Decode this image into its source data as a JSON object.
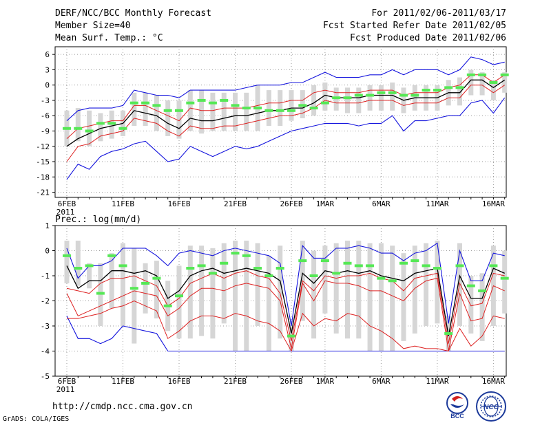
{
  "header": {
    "title": "DERF/NCC/BCC Monthly Forecast",
    "member_size": "Member Size=40",
    "variable": "Mean Surf. Temp.: °C",
    "period": "For 2011/02/06-2011/03/17",
    "started": "Fcst Started Refer Date 2011/02/05",
    "produced": "Fcst Produced Date 2011/02/06"
  },
  "footer": {
    "url": "http://cmdp.ncc.cma.gov.cn",
    "credit": "GrADS: COLA/IGES",
    "logo_bcc_text": "BCC",
    "logo_ncc_text": "NCC"
  },
  "colors": {
    "bar": "#d6d6d6",
    "median": "#55e855",
    "mean": "#000000",
    "inner": "#dd2020",
    "outer": "#1414dd",
    "grid": "#9a9a9a"
  },
  "chart_data": [
    {
      "type": "line",
      "title": "Mean Surf. Temp.: °C",
      "x_days": [
        1,
        2,
        3,
        4,
        5,
        6,
        7,
        8,
        9,
        10,
        11,
        12,
        13,
        14,
        15,
        16,
        17,
        18,
        19,
        20,
        21,
        22,
        23,
        24,
        25,
        26,
        27,
        28,
        29,
        30,
        31,
        32,
        33,
        34,
        35,
        36,
        37,
        38,
        39,
        40
      ],
      "x_ticks": [
        "6FEB",
        "11FEB",
        "16FEB",
        "21FEB",
        "26FEB",
        "1MAR",
        "6MAR",
        "11MAR",
        "16MAR"
      ],
      "x_tick_days": [
        1,
        6,
        11,
        16,
        21,
        24,
        29,
        34,
        39
      ],
      "x_year": "2011",
      "ylim": [
        -22,
        7.5
      ],
      "y_ticks": [
        -21,
        -18,
        -15,
        -12,
        -9,
        -6,
        -3,
        0,
        3,
        6
      ],
      "series": [
        {
          "name": "mean",
          "values": [
            -12,
            -10.5,
            -9.5,
            -8.5,
            -8,
            -7.5,
            -5,
            -5.5,
            -6,
            -7.5,
            -8.5,
            -6.5,
            -7,
            -7,
            -6.5,
            -6,
            -6,
            -5.5,
            -5,
            -5,
            -4.5,
            -4.5,
            -3.5,
            -2,
            -2.5,
            -2.5,
            -2.5,
            -2,
            -2,
            -2,
            -3,
            -2.5,
            -2.5,
            -2.5,
            -1.5,
            -1.5,
            1,
            1,
            -0.5,
            1
          ]
        },
        {
          "name": "upper_inner",
          "values": [
            -10.5,
            -8.5,
            -8,
            -7.5,
            -7,
            -7,
            -4,
            -4,
            -5,
            -6,
            -7,
            -4.5,
            -5,
            -5,
            -4.5,
            -4.5,
            -4.5,
            -4,
            -3.5,
            -3.5,
            -3,
            -3,
            -1.5,
            -1,
            -1.5,
            -1.5,
            -1.5,
            -1,
            -1,
            -1,
            -2,
            -1.5,
            -1.5,
            -1.5,
            -0.5,
            0,
            2,
            2,
            0.5,
            2
          ]
        },
        {
          "name": "lower_inner",
          "values": [
            -15,
            -12,
            -11.5,
            -10,
            -9.5,
            -9,
            -6.5,
            -7,
            -7.5,
            -9,
            -10,
            -8,
            -8.5,
            -8.5,
            -8,
            -8,
            -7.5,
            -7,
            -6.5,
            -6,
            -6,
            -5.5,
            -4.5,
            -3,
            -3.5,
            -3.5,
            -3.5,
            -3,
            -3,
            -3,
            -4,
            -3.5,
            -3.5,
            -3.5,
            -2.5,
            -2.5,
            0,
            0,
            -1.5,
            0
          ]
        },
        {
          "name": "max",
          "values": [
            -7,
            -5,
            -4.5,
            -4.5,
            -4.5,
            -4,
            -1,
            -1.5,
            -2,
            -2,
            -2.5,
            -1,
            -1,
            -1,
            -1,
            -1,
            -0.5,
            0,
            0,
            0,
            0.5,
            0.5,
            1.5,
            2.5,
            1.5,
            1.5,
            1.5,
            2,
            2,
            3,
            2,
            3,
            3,
            3,
            2,
            3,
            5.5,
            5,
            4,
            4.5
          ]
        },
        {
          "name": "min",
          "values": [
            -18.5,
            -15.5,
            -16.5,
            -14,
            -13,
            -12.5,
            -11.5,
            -11,
            -13,
            -15,
            -14.5,
            -12,
            -13,
            -14,
            -13,
            -12,
            -12.5,
            -12,
            -11,
            -10,
            -9,
            -8.5,
            -8,
            -7.5,
            -7.5,
            -7.5,
            -8,
            -7.5,
            -7.5,
            -6,
            -9,
            -7,
            -7,
            -6.5,
            -6,
            -6,
            -3.5,
            -3,
            -5.5,
            -2.5
          ]
        },
        {
          "name": "median",
          "values": [
            -8.5,
            -8.5,
            -9,
            -7.5,
            -7.5,
            -8.5,
            -3.5,
            -3.5,
            -4,
            -5,
            -5,
            -3.5,
            -3,
            -3.5,
            -3,
            -4,
            -4.5,
            -4.5,
            -5,
            -5,
            -5,
            -4,
            -4.5,
            -3.5,
            -2.5,
            -2.5,
            -2,
            -2,
            -1.5,
            -1.5,
            -2,
            -2,
            -1,
            -1,
            -0.5,
            -0.5,
            2,
            2,
            0.5,
            2
          ]
        },
        {
          "name": "bar_top",
          "values": [
            -5,
            -4.5,
            -5,
            -5.5,
            -5,
            -5,
            -1.5,
            -1.5,
            -2,
            -3,
            -3,
            -1,
            -1,
            -1.5,
            -1.5,
            -1.5,
            -1.5,
            0,
            -1,
            -1,
            -1,
            -1,
            0,
            0.5,
            -0.5,
            -0.5,
            -0.5,
            0,
            0,
            0.5,
            -0.5,
            0,
            0,
            0,
            1,
            1.5,
            3,
            2.5,
            1,
            2.5
          ]
        },
        {
          "name": "bar_bottom",
          "values": [
            -12,
            -11,
            -12,
            -11,
            -10.5,
            -10,
            -8,
            -8,
            -9,
            -10,
            -10.5,
            -9,
            -9.5,
            -9,
            -9,
            -9,
            -9,
            -9,
            -8,
            -8,
            -7,
            -6.5,
            -6,
            -5,
            -5,
            -5.5,
            -5.5,
            -5,
            -5,
            -5,
            -5.5,
            -5,
            -5,
            -5,
            -4,
            -4,
            -2,
            -2,
            -3,
            -1.5
          ]
        }
      ]
    },
    {
      "type": "line",
      "title": "Prec.: log(mm/d)",
      "x_days": [
        1,
        2,
        3,
        4,
        5,
        6,
        7,
        8,
        9,
        10,
        11,
        12,
        13,
        14,
        15,
        16,
        17,
        18,
        19,
        20,
        21,
        22,
        23,
        24,
        25,
        26,
        27,
        28,
        29,
        30,
        31,
        32,
        33,
        34,
        35,
        36,
        37,
        38,
        39,
        40
      ],
      "x_ticks": [
        "6FEB",
        "11FEB",
        "16FEB",
        "21FEB",
        "26FEB",
        "1MAR",
        "6MAR",
        "11MAR",
        "16MAR"
      ],
      "x_tick_days": [
        1,
        6,
        11,
        16,
        21,
        24,
        29,
        34,
        39
      ],
      "x_year": "2011",
      "ylim": [
        -5,
        1
      ],
      "y_ticks": [
        -5,
        -4,
        -3,
        -2,
        -1,
        0,
        1
      ],
      "series": [
        {
          "name": "mean",
          "values": [
            -0.6,
            -1.5,
            -1.2,
            -1.2,
            -0.8,
            -0.8,
            -0.9,
            -0.8,
            -1.0,
            -1.9,
            -1.6,
            -1.0,
            -0.8,
            -0.7,
            -0.9,
            -0.8,
            -0.7,
            -0.8,
            -0.9,
            -1.2,
            -3.3,
            -0.9,
            -1.3,
            -0.8,
            -0.9,
            -0.8,
            -0.9,
            -0.8,
            -1.0,
            -1.1,
            -1.2,
            -0.9,
            -0.8,
            -0.7,
            -3.4,
            -1.0,
            -1.9,
            -1.9,
            -0.7,
            -0.9
          ]
        },
        {
          "name": "upper_inner",
          "values": [
            -1.5,
            -1.6,
            -1.7,
            -1.3,
            -1.1,
            -1.1,
            -1.0,
            -1.2,
            -1.4,
            -2.2,
            -1.9,
            -1.3,
            -1.1,
            -0.9,
            -1.1,
            -0.9,
            -0.8,
            -1.0,
            -1.1,
            -1.7,
            -3.6,
            -1.2,
            -1.6,
            -1.0,
            -1.1,
            -1.0,
            -1.0,
            -0.9,
            -1.1,
            -1.2,
            -1.6,
            -1.1,
            -1.0,
            -0.9,
            -3.7,
            -1.3,
            -2.2,
            -2.1,
            -0.9,
            -1.0
          ]
        },
        {
          "name": "lower_inner",
          "values": [
            -1.7,
            -2.6,
            -2.4,
            -2.2,
            -2.0,
            -1.8,
            -1.6,
            -1.7,
            -1.8,
            -2.6,
            -2.3,
            -1.8,
            -1.5,
            -1.5,
            -1.6,
            -1.4,
            -1.3,
            -1.4,
            -1.5,
            -2.0,
            -3.9,
            -1.3,
            -2.0,
            -1.2,
            -1.3,
            -1.3,
            -1.4,
            -1.6,
            -1.6,
            -1.8,
            -2.0,
            -1.5,
            -1.2,
            -1.1,
            -4.0,
            -1.7,
            -2.8,
            -2.7,
            -1.4,
            -1.6
          ]
        },
        {
          "name": "lower_inner_2",
          "values": [
            -2.7,
            -2.7,
            -2.6,
            -2.5,
            -2.3,
            -2.2,
            -2.0,
            -2.2,
            -2.4,
            -3.5,
            -3.2,
            -2.8,
            -2.6,
            -2.6,
            -2.7,
            -2.5,
            -2.6,
            -2.8,
            -2.9,
            -3.2,
            -4.0,
            -2.5,
            -3.0,
            -2.7,
            -2.8,
            -2.5,
            -2.6,
            -3.0,
            -3.2,
            -3.5,
            -3.9,
            -3.8,
            -3.9,
            -3.9,
            -4.0,
            -3.1,
            -3.8,
            -3.4,
            -2.6,
            -2.7
          ]
        },
        {
          "name": "max",
          "values": [
            0.1,
            -1.1,
            -0.6,
            -0.6,
            -0.4,
            0.1,
            0.1,
            0.1,
            -0.2,
            -0.6,
            -0.1,
            0.0,
            -0.1,
            -0.2,
            0.0,
            0.1,
            0.0,
            -0.1,
            -0.2,
            -0.5,
            -3.0,
            0.2,
            -0.3,
            -0.3,
            0.1,
            0.1,
            0.2,
            0.1,
            -0.1,
            -0.1,
            -0.4,
            -0.1,
            0.0,
            0.3,
            -2.9,
            0.0,
            -1.2,
            -1.2,
            -0.1,
            -0.2
          ]
        },
        {
          "name": "min",
          "values": [
            -2.6,
            -3.5,
            -3.5,
            -3.7,
            -3.5,
            -3.0,
            -3.1,
            -3.2,
            -3.3,
            -4.0,
            -4.0,
            -4.0,
            -4.0,
            -4.0,
            -4.0,
            -4.0,
            -4.0,
            -4.0,
            -4.0,
            -4.0,
            -4.0,
            -4.0,
            -4.0,
            -4.0,
            -4.0,
            -4.0,
            -4.0,
            -4.0,
            -4.0,
            -4.0,
            -4.0,
            -4.0,
            -4.0,
            -4.0,
            -4.0,
            -4.0,
            -4.0,
            -4.0,
            -4.0,
            -4.0
          ]
        },
        {
          "name": "median",
          "values": [
            -0.2,
            -0.7,
            -0.6,
            -1.7,
            -0.2,
            -0.6,
            -1.5,
            -1.3,
            -1.1,
            -2.2,
            -1.8,
            -0.7,
            -0.6,
            -0.9,
            -0.5,
            -0.1,
            -0.2,
            -0.7,
            -1.0,
            -0.7,
            -3.4,
            -0.4,
            -1.0,
            -0.4,
            -0.9,
            -0.5,
            -0.6,
            -0.6,
            -1.1,
            -1.2,
            -0.5,
            -0.4,
            -0.6,
            -0.7,
            -3.3,
            -0.6,
            -1.4,
            -1.6,
            -0.6,
            -1.1
          ]
        },
        {
          "name": "bar_top",
          "values": [
            0.4,
            0.4,
            -0.5,
            -0.5,
            -0.1,
            0.3,
            0.1,
            -0.5,
            -0.4,
            -1.2,
            -0.6,
            0.2,
            0.2,
            0.1,
            0.3,
            0.4,
            0.4,
            0.3,
            -0.2,
            0.2,
            -2.8,
            0.4,
            0.0,
            0.2,
            0.3,
            0.4,
            0.4,
            0.3,
            0.3,
            0.2,
            -0.1,
            0.2,
            0.3,
            0.4,
            -2.6,
            0.3,
            -1.0,
            -0.9,
            0.2,
            0.0
          ]
        },
        {
          "name": "bar_bottom",
          "values": [
            -1.3,
            -1.4,
            -1.5,
            -3.0,
            -2.3,
            -3.0,
            -3.7,
            -2.5,
            -2.7,
            -3.2,
            -3.5,
            -3.5,
            -3.4,
            -3.5,
            -2.9,
            -4.0,
            -4.0,
            -3.0,
            -4.0,
            -3.5,
            -4.0,
            -2.8,
            -3.5,
            -2.5,
            -3.3,
            -3.5,
            -3.5,
            -4.0,
            -4.0,
            -4.0,
            -3.6,
            -3.3,
            -3.0,
            -2.9,
            -4.0,
            -3.0,
            -3.3,
            -3.6,
            -3.0,
            -2.5
          ]
        }
      ]
    }
  ]
}
